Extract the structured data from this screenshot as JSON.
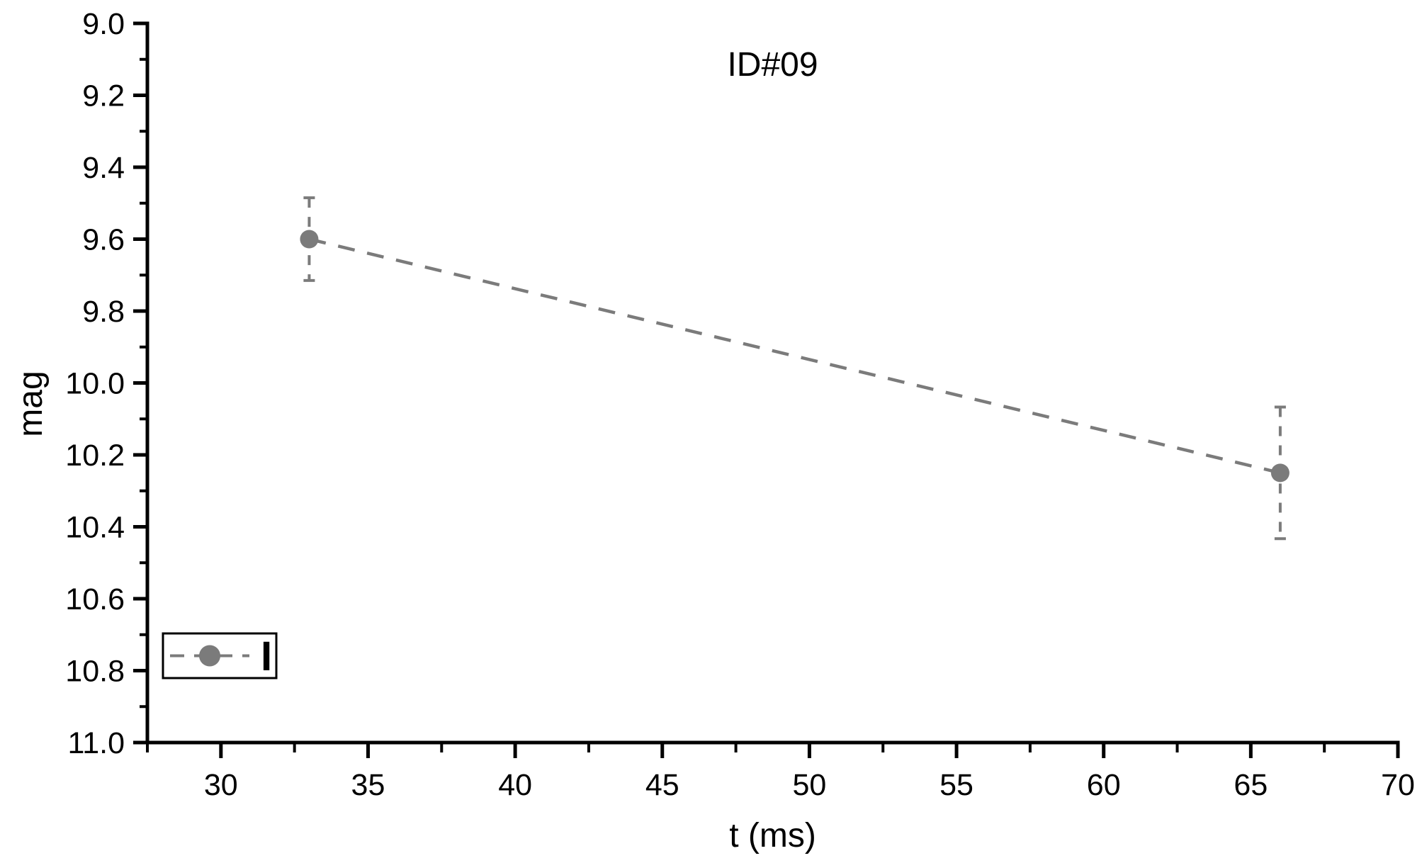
{
  "page": {
    "background": "#ffffff"
  },
  "chart_data": {
    "type": "line",
    "title": "ID#09",
    "xlabel": "t (ms)",
    "ylabel": "mag",
    "xlim": [
      27.5,
      70
    ],
    "ylim": [
      9.0,
      11.0
    ],
    "y_inverted": true,
    "grid": false,
    "axis_color": "#000000",
    "series_color": "#7b7b7b",
    "x_ticks": {
      "values": [
        30,
        35,
        40,
        45,
        50,
        55,
        60,
        65,
        70
      ],
      "labels": [
        "30",
        "35",
        "40",
        "45",
        "50",
        "55",
        "60",
        "65",
        "70"
      ],
      "minor_step": 2.5
    },
    "y_ticks": {
      "values": [
        9.0,
        9.2,
        9.4,
        9.6,
        9.8,
        10.0,
        10.2,
        10.4,
        10.6,
        10.8,
        11.0
      ],
      "labels": [
        "9.0",
        "9.2",
        "9.4",
        "9.6",
        "9.8",
        "10.0",
        "10.2",
        "10.4",
        "10.6",
        "10.8",
        "11.0"
      ],
      "minor_step": 0.1
    },
    "legend": {
      "position": "lower-left",
      "entries": [
        {
          "label": "I",
          "marker": "circle",
          "line_style": "dashed",
          "color": "#7b7b7b"
        }
      ]
    },
    "series": [
      {
        "name": "I",
        "color": "#7b7b7b",
        "marker": "circle",
        "line_style": "dashed",
        "points": [
          {
            "x": 33,
            "y": 9.6,
            "yerr": 0.115
          },
          {
            "x": 66,
            "y": 10.25,
            "yerr": 0.183
          }
        ]
      }
    ]
  }
}
